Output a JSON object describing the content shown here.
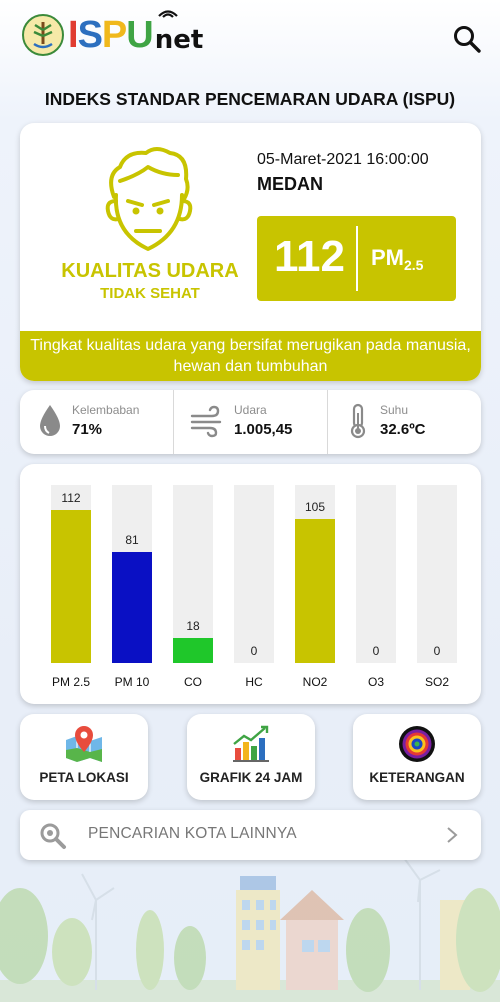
{
  "header": {
    "logo_text": [
      "I",
      "S",
      "P",
      "U"
    ],
    "logo_suffix": "net",
    "icons": [
      "emblem-icon",
      "search-icon"
    ]
  },
  "page_title": "INDEKS STANDAR PENCEMARAN UDARA (ISPU)",
  "status": {
    "datetime": "05-Maret-2021 16:00:00",
    "city": "MEDAN",
    "aqi_value": "112",
    "param_main": "PM",
    "param_sub": "2.5",
    "quality_line1": "KUALITAS UDARA",
    "quality_line2": "TIDAK SEHAT",
    "description": "Tingkat kualitas udara yang bersifat merugikan pada manusia, hewan dan tumbuhan",
    "status_color": "#c8c400"
  },
  "weather": [
    {
      "label": "Kelembaban",
      "value": "71%",
      "icon": "humidity-drop-icon"
    },
    {
      "label": "Udara",
      "value": "1.005,45",
      "icon": "wind-icon"
    },
    {
      "label": "Suhu",
      "value": "32.6ºC",
      "icon": "thermometer-icon"
    }
  ],
  "chart_data": {
    "type": "bar",
    "categories": [
      "PM 2.5",
      "PM 10",
      "CO",
      "HC",
      "NO2",
      "O3",
      "SO2"
    ],
    "values": [
      112,
      81,
      18,
      0,
      105,
      0,
      0
    ],
    "colors": [
      "#c8c400",
      "#0a10c4",
      "#1fc72a",
      "#c8c400",
      "#c8c400",
      "#c8c400",
      "#c8c400"
    ],
    "ylim": [
      0,
      130
    ],
    "title": "",
    "xlabel": "",
    "ylabel": ""
  },
  "buttons": [
    {
      "label": "PETA LOKASI",
      "icon": "map-pin-icon"
    },
    {
      "label": "GRAFIK 24 JAM",
      "icon": "bar-chart-icon"
    },
    {
      "label": "KETERANGAN",
      "icon": "color-target-icon"
    }
  ],
  "search": {
    "placeholder": "PENCARIAN KOTA LAINNYA"
  },
  "colors": {
    "accent": "#c8c400",
    "track": "#efefef"
  }
}
